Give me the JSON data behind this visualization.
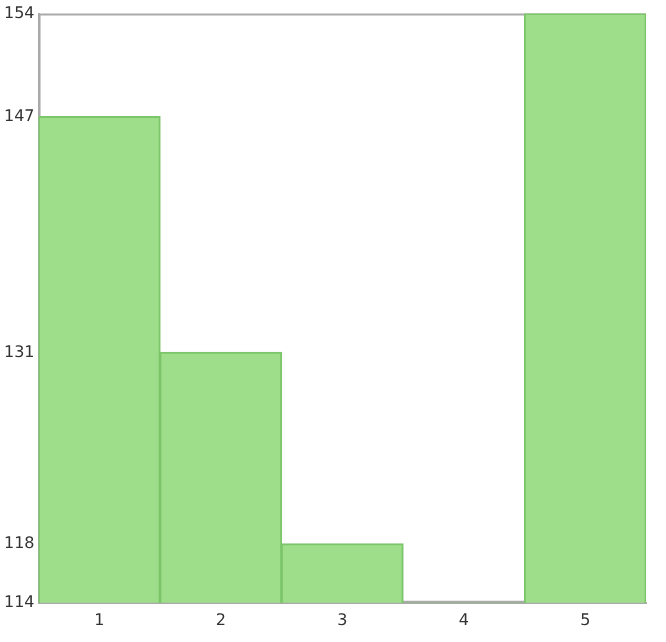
{
  "chart_data": {
    "type": "bar",
    "categories": [
      "1",
      "2",
      "3",
      "4",
      "5"
    ],
    "values": [
      147,
      131,
      118,
      114,
      154
    ],
    "color": "#9ede8a",
    "ylim": [
      114,
      154
    ],
    "yticks": [
      114,
      118,
      131,
      147,
      154
    ],
    "grid": false,
    "legend": false
  }
}
